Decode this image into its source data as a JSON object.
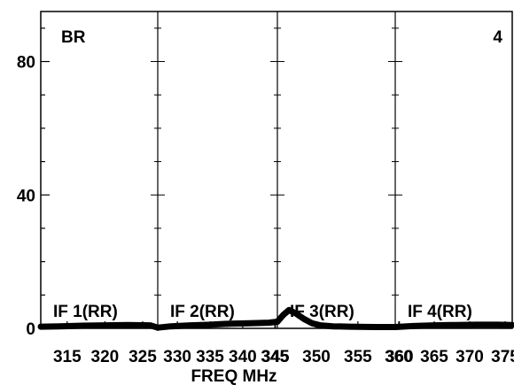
{
  "chart_data": {
    "type": "line",
    "title": "",
    "xlabel": "FREQ MHz",
    "ylabel": "",
    "ylim": [
      0,
      95
    ],
    "yticks": [
      0,
      40,
      80
    ],
    "yminor_step": 10,
    "grid": false,
    "legend": "none",
    "corner_labels": {
      "left": "BR",
      "right": "4"
    },
    "panels": [
      {
        "name": "IF 1(RR)",
        "xlim": [
          311.5,
          327
        ],
        "xticks": [
          315,
          320,
          325
        ],
        "x": [
          311.5,
          314,
          317,
          320,
          323,
          326,
          327
        ],
        "y": [
          0.5,
          0.6,
          0.8,
          0.9,
          1.0,
          0.9,
          0.2
        ]
      },
      {
        "name": "IF 2(RR)",
        "xlim": [
          327,
          345.3
        ],
        "xticks": [
          330,
          335,
          340,
          345
        ],
        "x": [
          327,
          329,
          332,
          335,
          338,
          341,
          344,
          345.3
        ],
        "y": [
          0.2,
          0.6,
          0.9,
          1.1,
          1.4,
          1.5,
          1.7,
          2.0
        ]
      },
      {
        "name": "IF 3(RR)",
        "xlim": [
          345.3,
          359.5
        ],
        "xticks": [
          345,
          350,
          355,
          360
        ],
        "x": [
          345.3,
          346,
          346.7,
          347.5,
          348.5,
          349.5,
          350.5,
          352,
          354,
          357,
          359.5
        ],
        "y": [
          2.0,
          4.0,
          5.5,
          4.5,
          2.8,
          1.5,
          0.9,
          0.6,
          0.5,
          0.4,
          0.4
        ]
      },
      {
        "name": "IF 4(RR)",
        "xlim": [
          359.5,
          376
        ],
        "xticks": [
          360,
          365,
          370,
          375
        ],
        "x": [
          359.5,
          362,
          365,
          368,
          371,
          374,
          376
        ],
        "y": [
          0.4,
          0.7,
          0.9,
          1.0,
          1.1,
          1.1,
          1.0
        ]
      }
    ]
  }
}
